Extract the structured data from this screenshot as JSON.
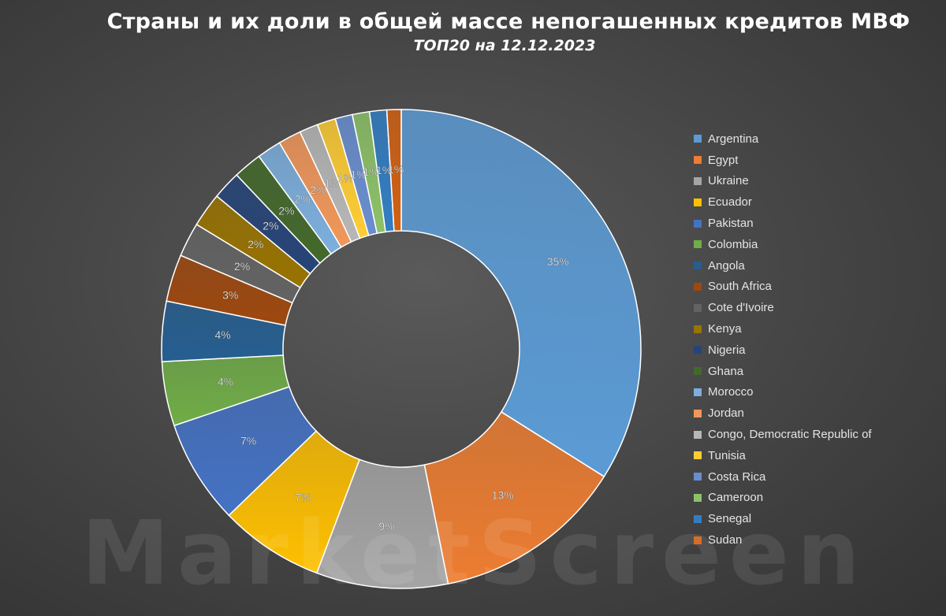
{
  "watermark": "MarketScreen",
  "chart_data": {
    "type": "pie",
    "style": "donut",
    "title": "Страны и их доли в общей массе непогашенных кредитов МВФ",
    "subtitle": "ТОП20 на 12.12.2023",
    "legend_position": "right",
    "categories": [
      "Argentina",
      "Egypt",
      "Ukraine",
      "Ecuador",
      "Pakistan",
      "Colombia",
      "Angola",
      "South Africa",
      "Cote d'Ivoire",
      "Kenya",
      "Nigeria",
      "Ghana",
      "Morocco",
      "Jordan",
      "Congo, Democratic Republic of",
      "Tunisia",
      "Costa Rica",
      "Cameroon",
      "Senegal",
      "Sudan"
    ],
    "values": [
      35.2,
      13.4,
      9.2,
      7.3,
      7.3,
      4.5,
      4.2,
      3.3,
      2.4,
      2.4,
      2.0,
      2.0,
      1.7,
      1.6,
      1.3,
      1.3,
      1.2,
      1.2,
      1.2,
      1.0
    ],
    "data_labels": [
      "35%",
      "13%",
      "9%",
      "7%",
      "7%",
      "4%",
      "4%",
      "3%",
      "2%",
      "2%",
      "2%",
      "2%",
      "2%",
      "2%",
      "1%",
      "1%",
      "1%",
      "1%",
      "1%",
      "1%"
    ],
    "colors": [
      "#5B9BD5",
      "#ED7D31",
      "#A5A5A5",
      "#FFC000",
      "#4472C4",
      "#70AD47",
      "#255E91",
      "#9E480E",
      "#636363",
      "#997300",
      "#264478",
      "#43682B",
      "#7CAFDD",
      "#F1975A",
      "#B7B7B7",
      "#FFCD33",
      "#698ED0",
      "#8CC168",
      "#327DC2",
      "#D26012"
    ]
  }
}
